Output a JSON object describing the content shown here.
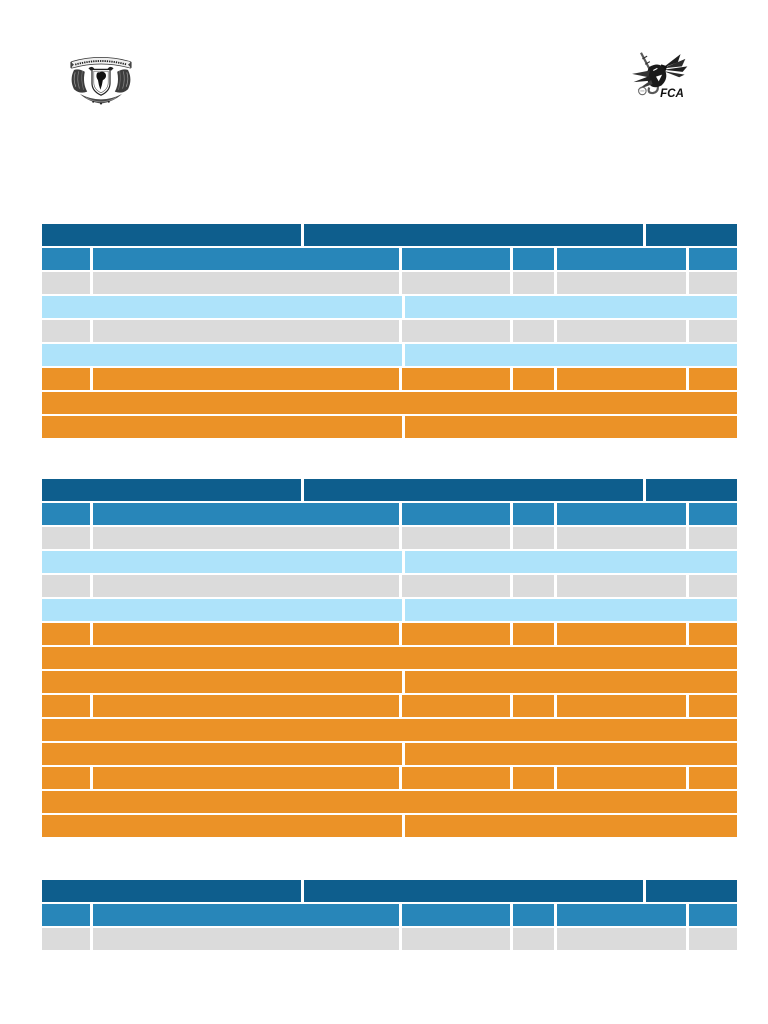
{
  "page": {
    "kind": "scanned-blank-form",
    "background": "#ffffff"
  },
  "colors": {
    "header_dark_blue": "#0e5e8d",
    "subheader_blue": "#2886b9",
    "row_gray": "#dbdbdb",
    "row_light_blue": "#aee3fa",
    "row_orange": "#eb9227",
    "grid_white": "#ffffff",
    "logo_ink": "#1a1a1a"
  },
  "logos": {
    "left": {
      "icon": "unam-coat-of-arms-icon"
    },
    "right": {
      "icon": "fca-mascot-icon",
      "text": "FCA"
    }
  },
  "row_layouts": {
    "header3": [
      37.6,
      49.2,
      13.2
    ],
    "cells6": [
      7.0,
      45.0,
      16.0,
      6.0,
      19.0,
      7.0
    ],
    "cells2": [
      52.0,
      48.0
    ],
    "cells1": [
      100
    ]
  },
  "tables": [
    {
      "name": "form-table-1",
      "rows": [
        {
          "layout": "header3",
          "color": "header_dark_blue"
        },
        {
          "layout": "cells6",
          "color": "subheader_blue"
        },
        {
          "layout": "cells6",
          "color": "row_gray"
        },
        {
          "layout": "cells2",
          "color": "row_light_blue"
        },
        {
          "layout": "cells6",
          "color": "row_gray"
        },
        {
          "layout": "cells2",
          "color": "row_light_blue"
        },
        {
          "layout": "cells6",
          "color": "row_orange"
        },
        {
          "layout": "cells1",
          "color": "row_orange"
        },
        {
          "layout": "cells2",
          "color": "row_orange"
        }
      ]
    },
    {
      "name": "form-table-2",
      "rows": [
        {
          "layout": "header3",
          "color": "header_dark_blue"
        },
        {
          "layout": "cells6",
          "color": "subheader_blue"
        },
        {
          "layout": "cells6",
          "color": "row_gray"
        },
        {
          "layout": "cells2",
          "color": "row_light_blue"
        },
        {
          "layout": "cells6",
          "color": "row_gray"
        },
        {
          "layout": "cells2",
          "color": "row_light_blue"
        },
        {
          "layout": "cells6",
          "color": "row_orange"
        },
        {
          "layout": "cells1",
          "color": "row_orange"
        },
        {
          "layout": "cells2",
          "color": "row_orange"
        },
        {
          "layout": "cells6",
          "color": "row_orange"
        },
        {
          "layout": "cells1",
          "color": "row_orange"
        },
        {
          "layout": "cells2",
          "color": "row_orange"
        },
        {
          "layout": "cells6",
          "color": "row_orange"
        },
        {
          "layout": "cells1",
          "color": "row_orange"
        },
        {
          "layout": "cells2",
          "color": "row_orange"
        }
      ]
    },
    {
      "name": "form-table-3",
      "rows": [
        {
          "layout": "header3",
          "color": "header_dark_blue"
        },
        {
          "layout": "cells6",
          "color": "subheader_blue"
        },
        {
          "layout": "cells6",
          "color": "row_gray"
        }
      ]
    }
  ]
}
